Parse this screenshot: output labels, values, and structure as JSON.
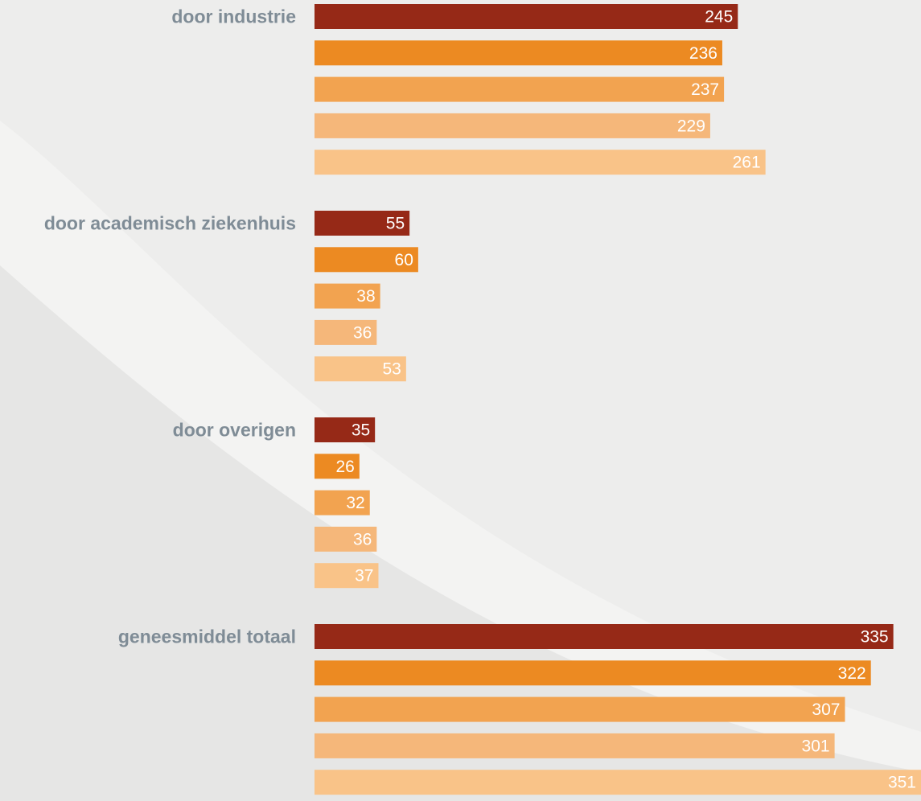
{
  "chart_data": {
    "type": "bar",
    "orientation": "horizontal",
    "categories": [
      "door industrie",
      "door academisch ziekenhuis",
      "door overigen",
      "geneesmiddel totaal"
    ],
    "series": [
      {
        "values": [
          245,
          55,
          35,
          335
        ],
        "color": "#962917"
      },
      {
        "values": [
          236,
          60,
          26,
          322
        ],
        "color": "#ec8a22"
      },
      {
        "values": [
          237,
          38,
          32,
          307
        ],
        "color": "#f2a350"
      },
      {
        "values": [
          229,
          36,
          36,
          301
        ],
        "color": "#f5b77a"
      },
      {
        "values": [
          261,
          53,
          37,
          351
        ],
        "color": "#f9c388"
      }
    ],
    "xlim": [
      0,
      351
    ],
    "grid": false,
    "legend": "none",
    "data_labels": "inside-end"
  }
}
